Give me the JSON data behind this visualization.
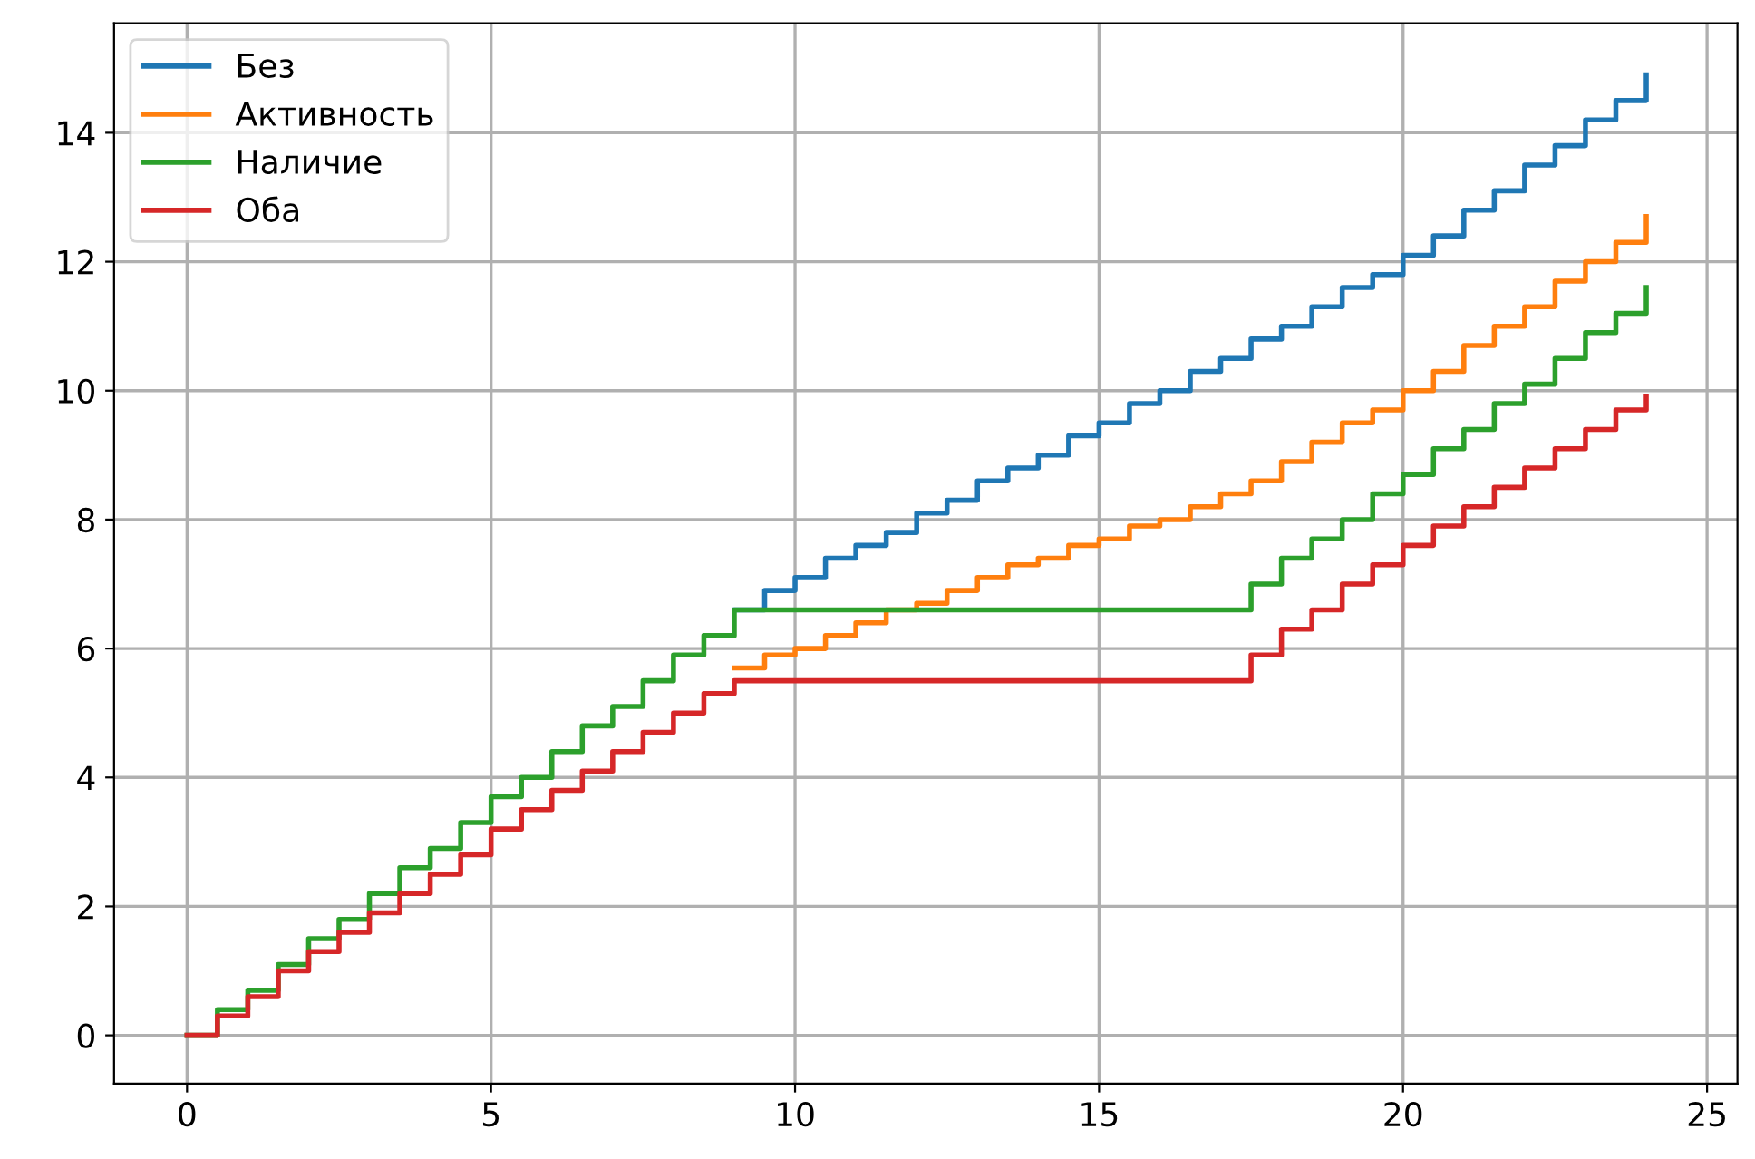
{
  "chart_data": {
    "type": "step",
    "x": [
      0,
      0.5,
      1,
      1.5,
      2,
      2.5,
      3,
      3.5,
      4,
      4.5,
      5,
      5.5,
      6,
      6.5,
      7,
      7.5,
      8,
      8.5,
      9,
      9.5,
      10,
      10.5,
      11,
      11.5,
      12,
      12.5,
      13,
      13.5,
      14,
      14.5,
      15,
      15.5,
      16,
      16.5,
      17,
      17.5,
      18,
      18.5,
      19,
      19.5,
      20,
      20.5,
      21,
      21.5,
      22,
      22.5,
      23,
      23.5,
      24
    ],
    "series": [
      {
        "name": "Без",
        "color": "#1f77b4",
        "values": [
          null,
          null,
          null,
          null,
          null,
          null,
          null,
          null,
          null,
          null,
          null,
          null,
          null,
          null,
          null,
          null,
          null,
          null,
          6.6,
          6.9,
          7.1,
          7.4,
          7.6,
          7.8,
          8.1,
          8.3,
          8.6,
          8.8,
          9.0,
          9.3,
          9.5,
          9.8,
          10.0,
          10.3,
          10.5,
          10.8,
          11.0,
          11.3,
          11.6,
          11.8,
          12.1,
          12.4,
          12.8,
          13.1,
          13.5,
          13.8,
          14.2,
          14.5,
          14.9
        ]
      },
      {
        "name": "Активность",
        "color": "#ff7f0e",
        "values": [
          null,
          null,
          null,
          null,
          null,
          null,
          null,
          null,
          null,
          null,
          null,
          null,
          null,
          null,
          null,
          null,
          null,
          null,
          5.7,
          5.9,
          6.0,
          6.2,
          6.4,
          6.6,
          6.7,
          6.9,
          7.1,
          7.3,
          7.4,
          7.6,
          7.7,
          7.9,
          8.0,
          8.2,
          8.4,
          8.6,
          8.9,
          9.2,
          9.5,
          9.7,
          10.0,
          10.3,
          10.7,
          11.0,
          11.3,
          11.7,
          12.0,
          12.3,
          12.7
        ]
      },
      {
        "name": "Наличие",
        "color": "#2ca02c",
        "values": [
          0,
          0.4,
          0.7,
          1.1,
          1.5,
          1.8,
          2.2,
          2.6,
          2.9,
          3.3,
          3.7,
          4.0,
          4.4,
          4.8,
          5.1,
          5.5,
          5.9,
          6.2,
          6.6,
          6.6,
          6.6,
          6.6,
          6.6,
          6.6,
          6.6,
          6.6,
          6.6,
          6.6,
          6.6,
          6.6,
          6.6,
          6.6,
          6.6,
          6.6,
          6.6,
          7.0,
          7.4,
          7.7,
          8.0,
          8.4,
          8.7,
          9.1,
          9.4,
          9.8,
          10.1,
          10.5,
          10.9,
          11.2,
          11.6
        ]
      },
      {
        "name": "Оба",
        "color": "#d62728",
        "values": [
          0,
          0.3,
          0.6,
          1.0,
          1.3,
          1.6,
          1.9,
          2.2,
          2.5,
          2.8,
          3.2,
          3.5,
          3.8,
          4.1,
          4.4,
          4.7,
          5.0,
          5.3,
          5.5,
          5.5,
          5.5,
          5.5,
          5.5,
          5.5,
          5.5,
          5.5,
          5.5,
          5.5,
          5.5,
          5.5,
          5.5,
          5.5,
          5.5,
          5.5,
          5.5,
          5.9,
          6.3,
          6.6,
          7.0,
          7.3,
          7.6,
          7.9,
          8.2,
          8.5,
          8.8,
          9.1,
          9.4,
          9.7,
          9.9
        ]
      }
    ],
    "xlim": [
      -1.2,
      25.5
    ],
    "ylim": [
      -0.75,
      15.7
    ],
    "xticks": [
      0,
      5,
      10,
      15,
      20,
      25
    ],
    "yticks": [
      0,
      2,
      4,
      6,
      8,
      10,
      12,
      14
    ],
    "grid": true,
    "legend": "top left"
  }
}
